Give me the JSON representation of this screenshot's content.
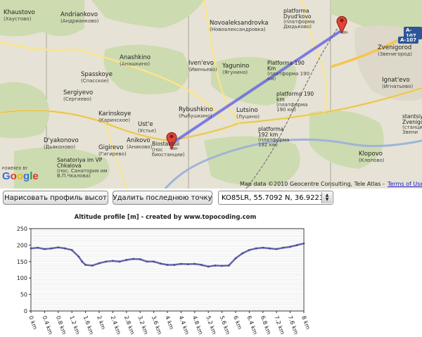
{
  "map": {
    "places": [
      {
        "id": "khaustovo",
        "name": "Khaustovo",
        "ru": "(Хаустово)"
      },
      {
        "id": "andriankovo",
        "name": "Andriankovo",
        "ru": "(Андрианково)"
      },
      {
        "id": "novoaleksandrovka",
        "name": "Novoaleksandrovka",
        "ru": "(Новоалександровка)"
      },
      {
        "id": "dyudkovo",
        "name": "platforma Dyud'kovo",
        "ru": "(платформа Дюдьково)"
      },
      {
        "id": "anashkino",
        "name": "Anashkino",
        "ru": "(Анашкино)"
      },
      {
        "id": "ivenevo",
        "name": "Iven'evo",
        "ru": "(Ивеньево)"
      },
      {
        "id": "yagunino",
        "name": "Yagunino",
        "ru": "(Ягунино)"
      },
      {
        "id": "pl190a",
        "name": "Platforma 190 Km",
        "ru": "(платформа 190 км)"
      },
      {
        "id": "zvenigorod",
        "name": "Zvenigorod",
        "ru": "(Звенигород)"
      },
      {
        "id": "spasskoye",
        "name": "Spasskoye",
        "ru": "(Спасское)"
      },
      {
        "id": "sergiyevo",
        "name": "Sergiyevo",
        "ru": "(Сергиево)"
      },
      {
        "id": "ignatevo",
        "name": "Ignat'evo",
        "ru": "(Игнатьево)"
      },
      {
        "id": "pl190b",
        "name": "platforma 190 km",
        "ru": "(платформа 190 км)"
      },
      {
        "id": "rybushkino",
        "name": "Rybushkino",
        "ru": "(Рыбушкино)"
      },
      {
        "id": "lutsino",
        "name": "Lutsino",
        "ru": "(Луцино)"
      },
      {
        "id": "karinskoye",
        "name": "Karinskoye",
        "ru": "(Каринское)"
      },
      {
        "id": "uste",
        "name": "Ust'e",
        "ru": "(Устье)"
      },
      {
        "id": "pl192",
        "name": "platforma 192 km",
        "ru": "(платформа 192 км)"
      },
      {
        "id": "stantsiya",
        "name": "stantsiy Zvenigor",
        "ru": "(станция Звени"
      },
      {
        "id": "dyakonovo",
        "name": "D'yakonovo",
        "ru": "(Дьяконово)"
      },
      {
        "id": "anikovo",
        "name": "Anikovo",
        "ru": "(Аниково)"
      },
      {
        "id": "biostantsii",
        "name": "Biostantsii",
        "ru": "(пос биостанции)"
      },
      {
        "id": "gigirevo",
        "name": "Gigirevo",
        "ru": "(Гигирево)"
      },
      {
        "id": "sanatoriya",
        "name": "Sanatoriya im VP Chkalova",
        "ru": "(пос. Санатория им В.П.Чкалова)"
      },
      {
        "id": "klopovo",
        "name": "Klopovo",
        "ru": "(Клопово)"
      }
    ],
    "highway_label": "A-107",
    "powered_by": "POWERED BY",
    "google_logo": "Google",
    "data_credit": "Map data ©2010 Geocentre Consulting, Tele Atlas -",
    "terms_link": "Terms of Use",
    "route_color": "#5a5ae6",
    "marker_color": "#e0443a"
  },
  "controls": {
    "draw_button": "Нарисовать профиль высот",
    "delete_button": "Удалить последнюю точку",
    "dataset_select": "KO85LR, 55.7092 N, 36.9223 E"
  },
  "chart_data": {
    "type": "line",
    "title": "Altitude profile [m] - created by www.topocoding.com",
    "ylim": [
      0,
      250
    ],
    "yticks": [
      0,
      50,
      100,
      150,
      200,
      250
    ],
    "xlim": [
      0,
      8
    ],
    "xticks": [
      "0 km",
      "0.4 km",
      "0.8 km",
      "1.2 km",
      "1.6 km",
      "2 km",
      "2.4 km",
      "2.8 km",
      "3.2 km",
      "3.6 km",
      "4 km",
      "4.4 km",
      "4.8 km",
      "5.2 km",
      "5.6 km",
      "6 km",
      "6.4 km",
      "6.8 km",
      "7.2 km",
      "7.6 km",
      "8 km"
    ],
    "grid": true,
    "line_color": "#6666aa",
    "x": [
      0,
      0.2,
      0.4,
      0.6,
      0.8,
      1.0,
      1.2,
      1.4,
      1.5,
      1.6,
      1.8,
      2.0,
      2.2,
      2.4,
      2.6,
      2.8,
      3.0,
      3.2,
      3.4,
      3.6,
      3.8,
      4.0,
      4.2,
      4.4,
      4.6,
      4.8,
      5.0,
      5.2,
      5.4,
      5.6,
      5.8,
      6.0,
      6.2,
      6.4,
      6.6,
      6.8,
      7.0,
      7.2,
      7.4,
      7.6,
      7.8,
      8.0
    ],
    "y": [
      190,
      192,
      188,
      190,
      193,
      190,
      185,
      165,
      150,
      140,
      138,
      145,
      150,
      152,
      150,
      155,
      158,
      157,
      150,
      150,
      144,
      140,
      140,
      143,
      142,
      143,
      140,
      135,
      138,
      137,
      138,
      160,
      175,
      185,
      190,
      192,
      190,
      188,
      192,
      195,
      200,
      205
    ]
  }
}
